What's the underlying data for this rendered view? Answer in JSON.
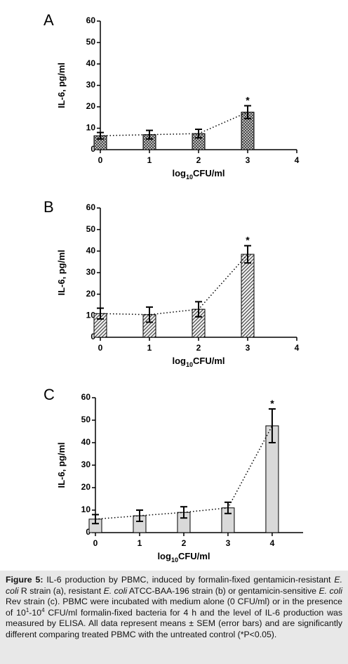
{
  "chart_data": [
    {
      "type": "bar",
      "panel": "A",
      "ylabel": "IL-6, pg/ml",
      "xlabel_parts": [
        "log",
        "10",
        "CFU/ml"
      ],
      "x": [
        0,
        1,
        2,
        3
      ],
      "values": [
        6.5,
        7,
        7.5,
        17.5
      ],
      "errors": [
        1.5,
        2,
        2,
        3
      ],
      "xlim": [
        0,
        4
      ],
      "xticks": [
        0,
        1,
        2,
        3,
        4
      ],
      "ylim": [
        0,
        60
      ],
      "yticks": [
        0,
        10,
        20,
        30,
        40,
        50,
        60
      ],
      "pattern": "crosshatch",
      "color": "#555555",
      "annotations": [
        {
          "index": 3,
          "text": "*"
        }
      ]
    },
    {
      "type": "bar",
      "panel": "B",
      "ylabel": "IL-6, pg/ml",
      "xlabel_parts": [
        "log",
        "10",
        "CFU/ml"
      ],
      "x": [
        0,
        1,
        2,
        3
      ],
      "values": [
        11,
        10.5,
        13,
        38.5
      ],
      "errors": [
        2.5,
        3.5,
        3.5,
        4
      ],
      "xlim": [
        0,
        4
      ],
      "xticks": [
        0,
        1,
        2,
        3,
        4
      ],
      "ylim": [
        0,
        60
      ],
      "yticks": [
        0,
        10,
        20,
        30,
        40,
        50,
        60
      ],
      "pattern": "hatch",
      "color": "#555555",
      "annotations": [
        {
          "index": 3,
          "text": "*"
        }
      ]
    },
    {
      "type": "bar",
      "panel": "C",
      "ylabel": "IL-6, pg/ml",
      "xlabel_parts": [
        "log",
        "10",
        "CFU/ml"
      ],
      "x": [
        0,
        1,
        2,
        3,
        4
      ],
      "values": [
        6,
        7.5,
        9,
        11,
        47.5
      ],
      "errors": [
        2,
        2.5,
        2.5,
        2.5,
        7.5
      ],
      "xlim": [
        0,
        4.7
      ],
      "xticks": [
        0,
        1,
        2,
        3,
        4
      ],
      "ylim": [
        0,
        60
      ],
      "yticks": [
        0,
        10,
        20,
        30,
        40,
        50,
        60
      ],
      "pattern": "none",
      "color": "#d9d9d9",
      "annotations": [
        {
          "index": 4,
          "text": "*"
        }
      ]
    }
  ],
  "caption": [
    {
      "text": "Figure 5:",
      "style": "b"
    },
    {
      "text": " IL-6 production by PBMC, induced by formalin-fixed gentamicin-resistant ",
      "style": "n"
    },
    {
      "text": "E. coli",
      "style": "i"
    },
    {
      "text": " R strain (a), resistant ",
      "style": "n"
    },
    {
      "text": "E. coli",
      "style": "i"
    },
    {
      "text": " ATCC-BAA-196 strain (b) or gentamicin-sensitive ",
      "style": "n"
    },
    {
      "text": "E. coli",
      "style": "i"
    },
    {
      "text": " Rev strain (c). PBMC were incubated with medium alone (0 CFU/ml) or in the presence of 10",
      "style": "n"
    },
    {
      "text": "1",
      "style": "sup"
    },
    {
      "text": "-10",
      "style": "n"
    },
    {
      "text": "4",
      "style": "sup"
    },
    {
      "text": " CFU/ml formalin-fixed bacteria for 4 h and the level of IL-6 production was measured by ELISA. All data represent means ± SEM (error bars) and are significantly different comparing treated PBMC with the untreated control (*P<0.05).",
      "style": "n"
    }
  ]
}
